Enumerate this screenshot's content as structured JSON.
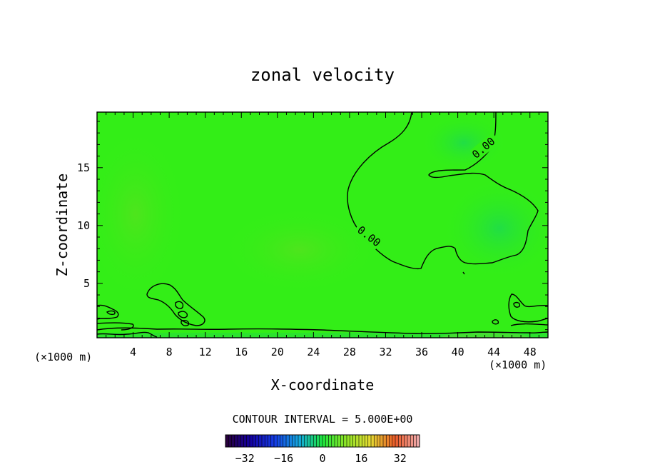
{
  "chart_data": {
    "type": "contour",
    "title": "zonal velocity",
    "xlabel": "X-coordinate",
    "ylabel": "Z-coordinate",
    "x_unit_left": "(×1000 m)",
    "x_unit_right": "(×1000 m)",
    "xlim": [
      0,
      50
    ],
    "ylim": [
      0.3,
      19.8
    ],
    "xticks": [
      4,
      8,
      12,
      16,
      20,
      24,
      28,
      32,
      36,
      40,
      44,
      48
    ],
    "yticks": [
      5,
      10,
      15
    ],
    "contour_label": "0.00",
    "contour_interval_text": "CONTOUR INTERVAL = 5.000E+00",
    "colorbar": {
      "range": [
        -40,
        40
      ],
      "ticks": [
        -32,
        -16,
        0,
        16,
        32
      ],
      "tick_labels": [
        "−32",
        "−16",
        "0",
        "16",
        "32"
      ]
    },
    "grid": false
  },
  "colors": {
    "field_main": "#33ee17",
    "field_light": "#48e41a",
    "field_teal": "#22dd44",
    "field_warm": "#80e020",
    "contour": "#000000"
  }
}
